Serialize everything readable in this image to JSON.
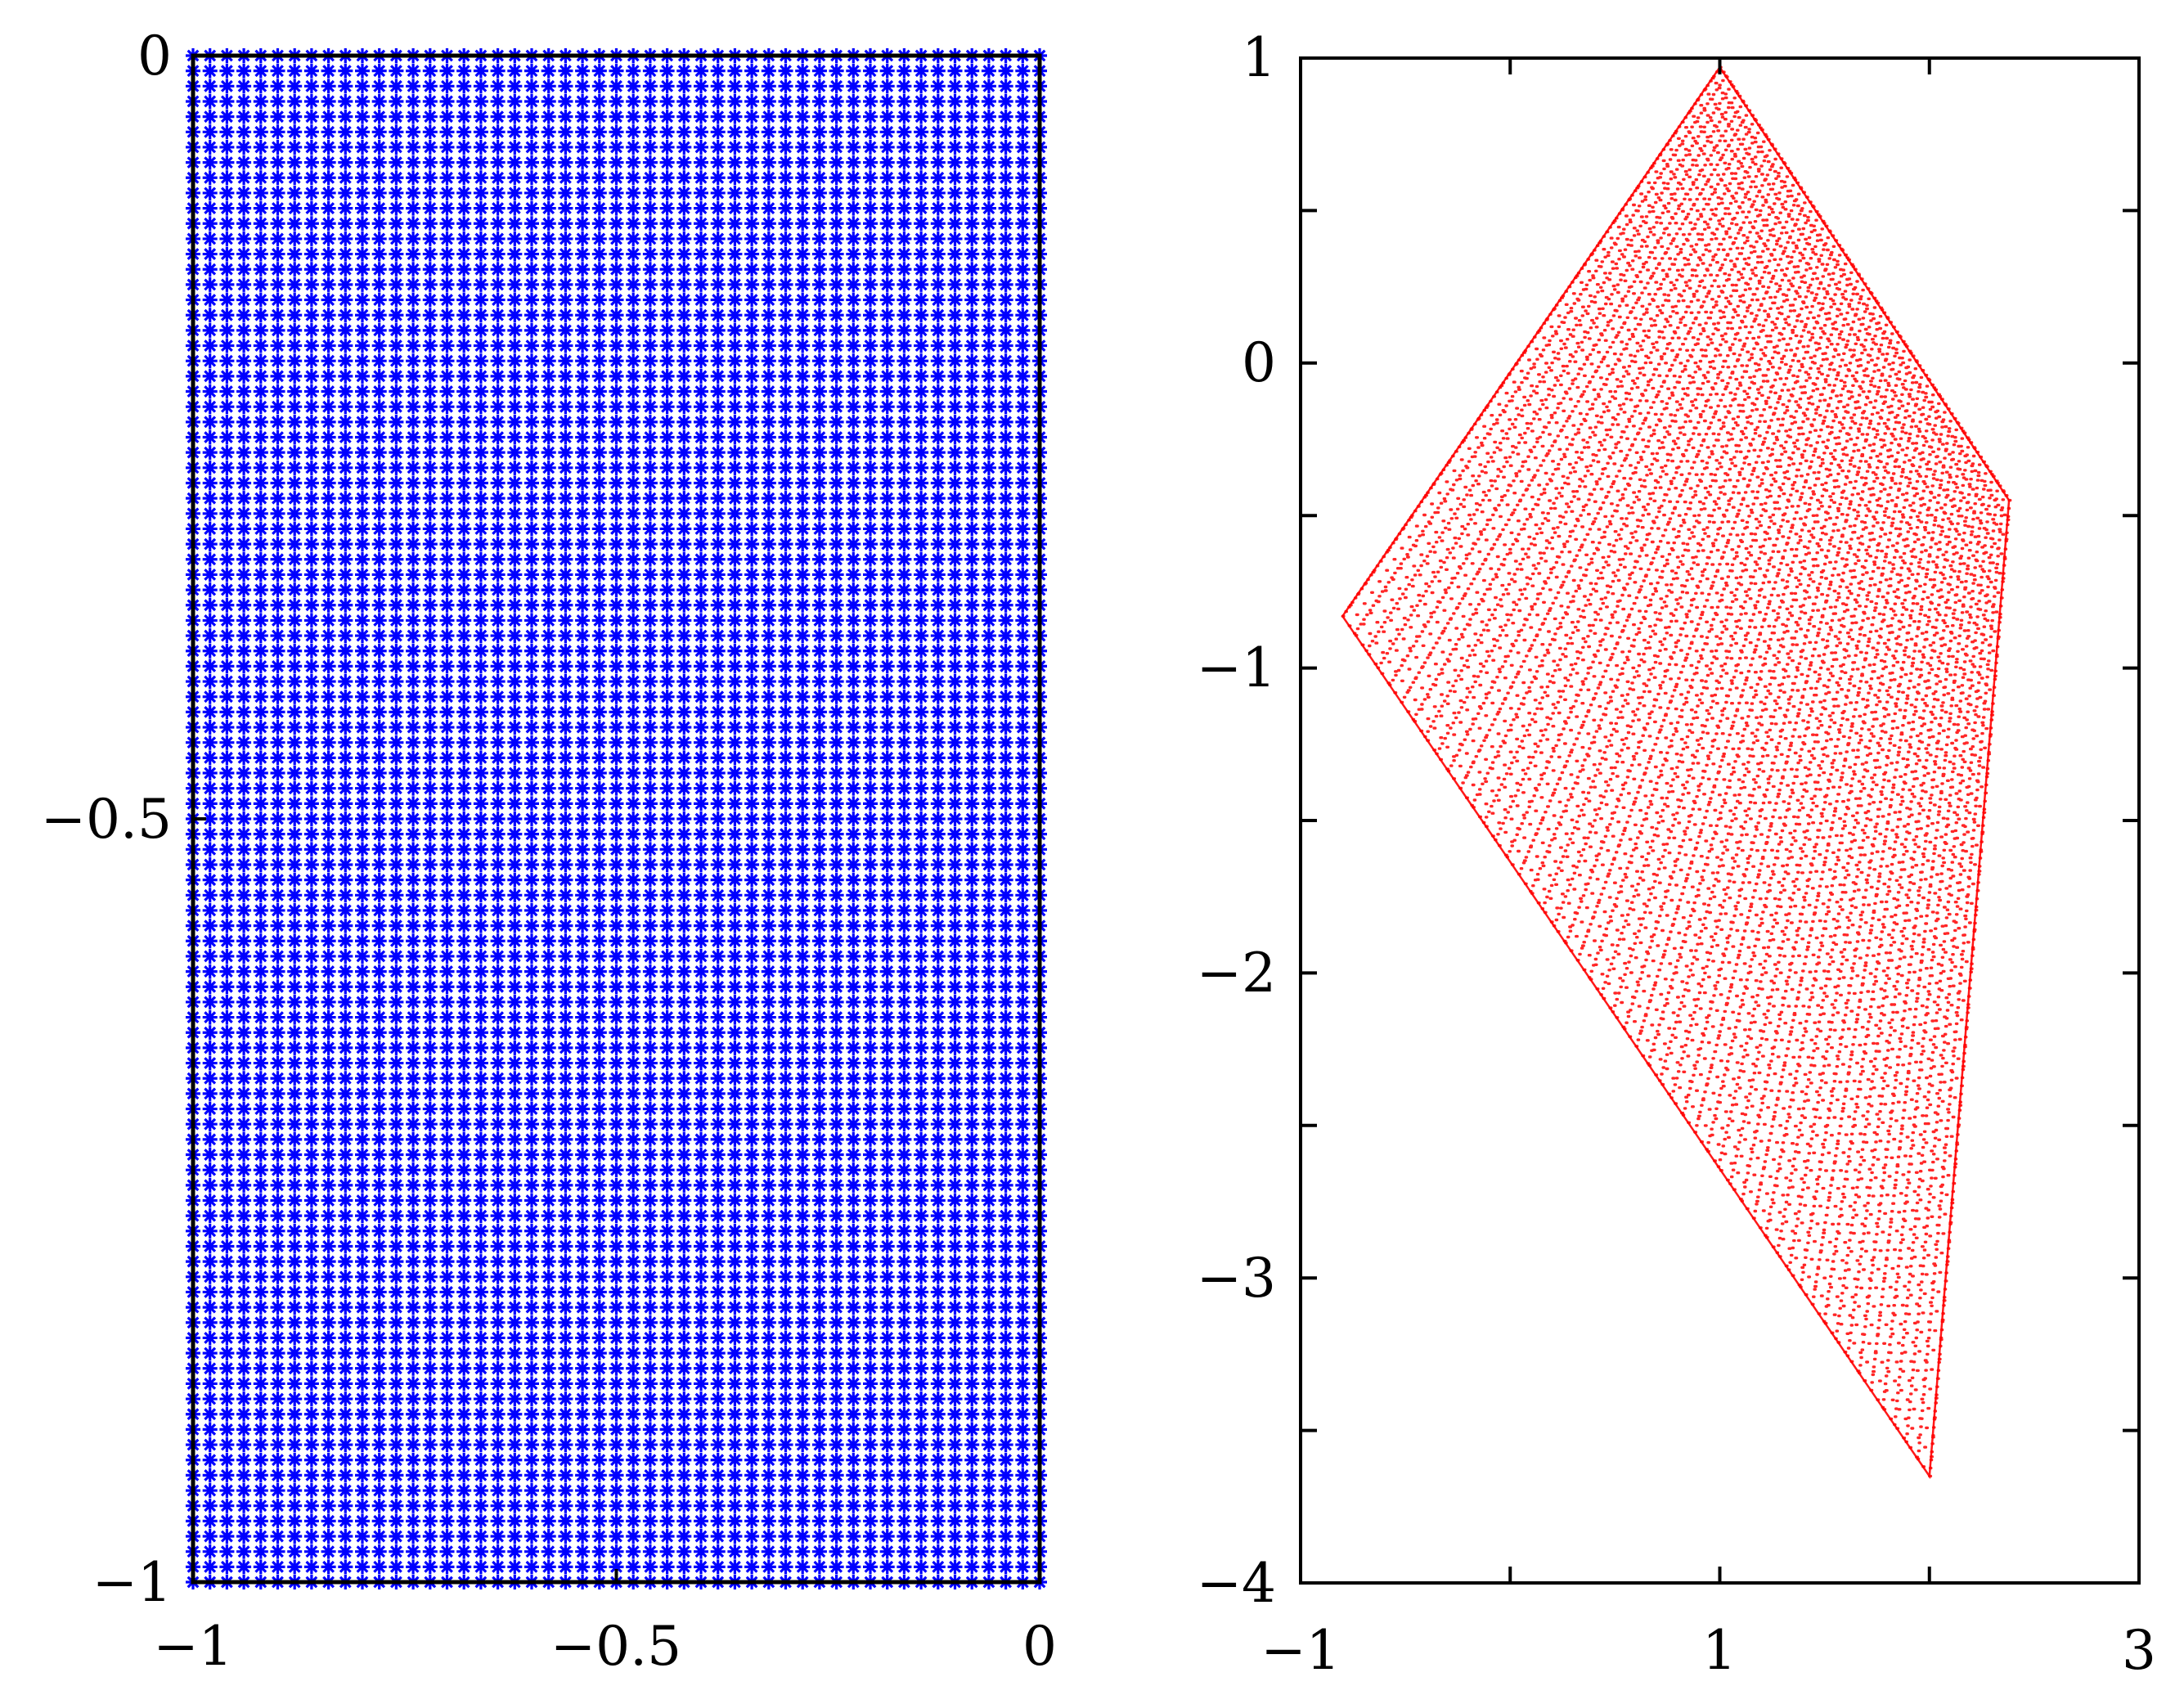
{
  "chart_data": [
    {
      "type": "scatter",
      "title": "",
      "xlabel": "",
      "ylabel": "",
      "xlim": [
        -1,
        0
      ],
      "ylim": [
        -1,
        0
      ],
      "xticks": [
        -1,
        -0.5,
        0
      ],
      "yticks": [
        -1,
        -0.5,
        0
      ],
      "xtick_labels": [
        "−1",
        "−0.5",
        "0"
      ],
      "ytick_labels": [
        "−1",
        "−0.5",
        "0"
      ],
      "marker": "asterisk",
      "grid": false,
      "series": [
        {
          "color": "#0000ff",
          "grid_points": {
            "x_range": [
              -1,
              0
            ],
            "y_range": [
              -1,
              0
            ],
            "nx": 50,
            "ny": 100
          }
        }
      ]
    },
    {
      "type": "scatter",
      "title": "",
      "xlabel": "",
      "ylabel": "",
      "xlim": [
        -1,
        3
      ],
      "ylim": [
        -4,
        1
      ],
      "xticks": [
        -1,
        0,
        1,
        2,
        3
      ],
      "yticks": [
        -4,
        -3.5,
        -3,
        -2.5,
        -2,
        -1.5,
        -1,
        -0.5,
        0,
        0.5,
        1
      ],
      "xtick_labels": [
        "−1",
        "",
        "1",
        "",
        "3"
      ],
      "ytick_labels": [
        "−4",
        "",
        "−3",
        "",
        "−2",
        "",
        "−1",
        "",
        "0",
        "",
        "1"
      ],
      "marker": "point",
      "grid": false,
      "series": [
        {
          "color": "#ff0000",
          "mapped_region_vertices": [
            [
              1.0,
              0.97
            ],
            [
              2.38,
              -0.45
            ],
            [
              2.0,
              -3.65
            ],
            [
              -0.8,
              -0.83
            ]
          ],
          "n_stripes": 50
        }
      ]
    }
  ]
}
